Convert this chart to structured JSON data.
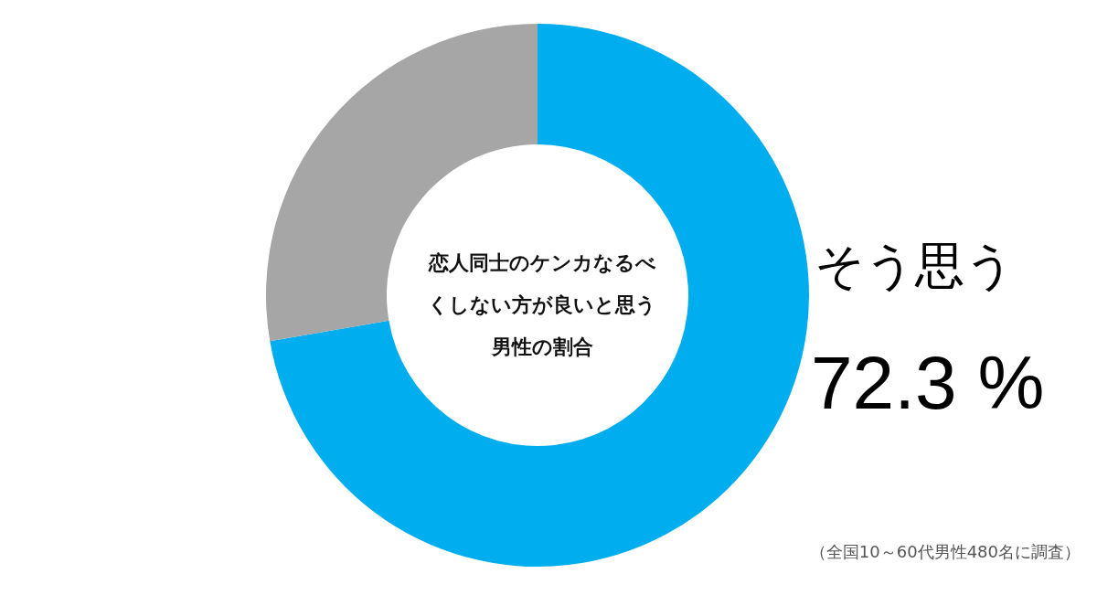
{
  "chart_data": {
    "type": "donut",
    "title": "恋人同士のケンカなるべくしない方が良いと思う男性の割合",
    "categories": [
      "そう思う",
      null
    ],
    "values": [
      72.3,
      27.7
    ],
    "colors": [
      "#00aeef",
      "#a6a6a6"
    ],
    "value_labels": [
      "72.3 %",
      null
    ],
    "annotations": [
      "（全国10～60代男性480名に調査）"
    ]
  }
}
